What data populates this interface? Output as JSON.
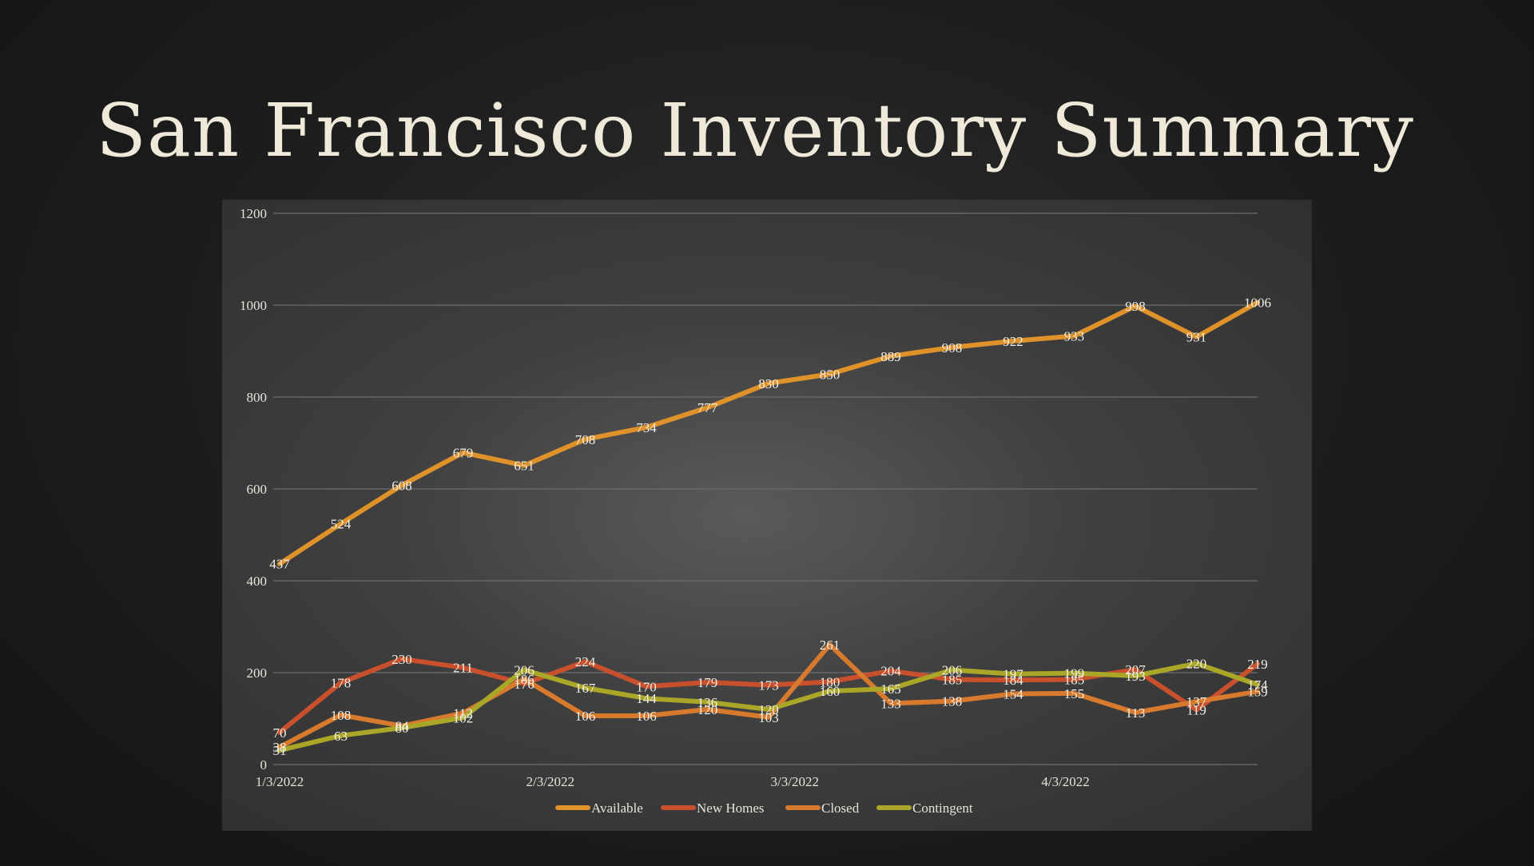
{
  "slide": {
    "title": "San Francisco Inventory Summary"
  },
  "chart_data": {
    "type": "line",
    "title": "",
    "xlabel": "",
    "ylabel": "",
    "ylim": [
      0,
      1200
    ],
    "yticks": [
      0,
      200,
      400,
      600,
      800,
      1000,
      1200
    ],
    "x": [
      "1/3/2022",
      "1/10/2022",
      "1/17/2022",
      "1/24/2022",
      "1/31/2022",
      "2/7/2022",
      "2/14/2022",
      "2/21/2022",
      "2/28/2022",
      "3/7/2022",
      "3/14/2022",
      "3/21/2022",
      "3/28/2022",
      "4/4/2022",
      "4/11/2022",
      "4/18/2022",
      "4/25/2022"
    ],
    "xtick_labels": [
      {
        "label": "1/3/2022",
        "x": "1/3/2022"
      },
      {
        "label": "2/3/2022",
        "x": "2/3/2022"
      },
      {
        "label": "3/3/2022",
        "x": "3/3/2022"
      },
      {
        "label": "4/3/2022",
        "x": "4/3/2022"
      }
    ],
    "grid": true,
    "legend": "bottom",
    "series": [
      {
        "name": "Available",
        "color": "#e0922a",
        "values": [
          437,
          524,
          608,
          679,
          651,
          708,
          734,
          777,
          830,
          850,
          889,
          908,
          922,
          933,
          998,
          931,
          1006
        ]
      },
      {
        "name": "New Homes",
        "color": "#c8502c",
        "values": [
          70,
          178,
          230,
          211,
          176,
          224,
          170,
          179,
          173,
          180,
          204,
          185,
          184,
          185,
          207,
          119,
          219
        ]
      },
      {
        "name": "Closed",
        "color": "#d87a2e",
        "values": [
          38,
          108,
          84,
          112,
          186,
          106,
          106,
          120,
          103,
          261,
          133,
          138,
          154,
          155,
          113,
          137,
          159
        ]
      },
      {
        "name": "Contingent",
        "color": "#a9a628",
        "values": [
          31,
          63,
          80,
          102,
          206,
          167,
          144,
          136,
          120,
          160,
          165,
          206,
          197,
          199,
          193,
          220,
          174
        ]
      }
    ]
  }
}
